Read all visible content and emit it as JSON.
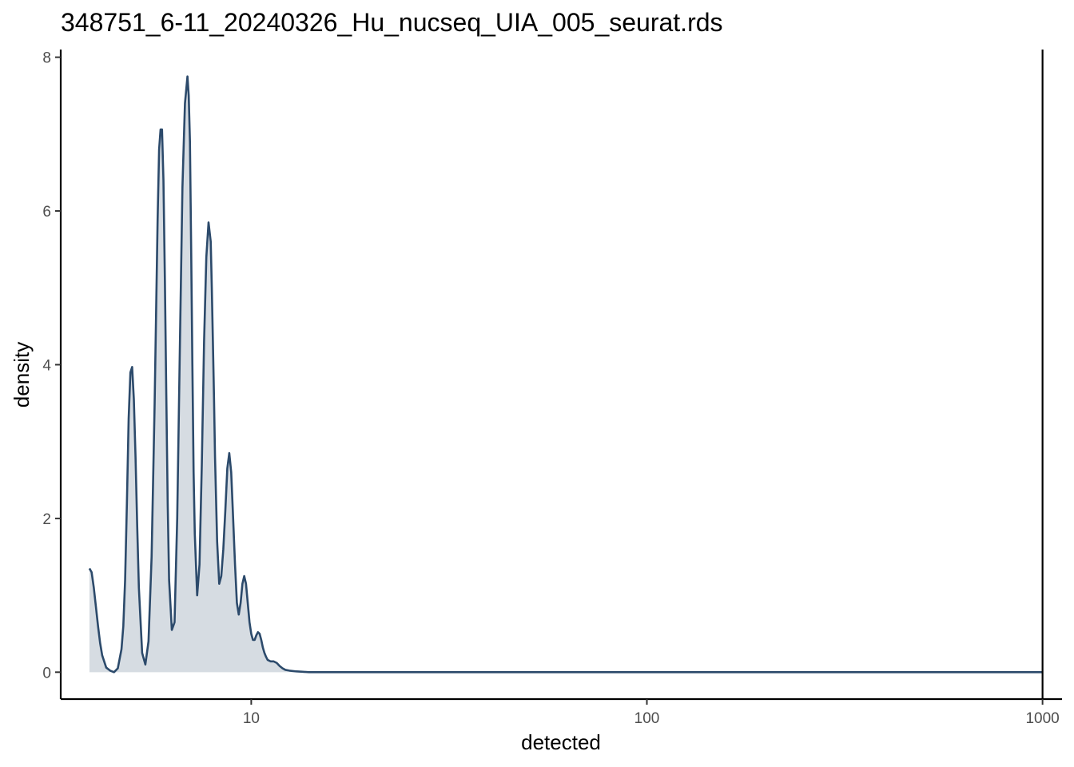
{
  "chart_data": {
    "type": "area",
    "title": "348751_6-11_20240326_Hu_nucseq_UIA_005_seurat.rds",
    "xlabel": "detected",
    "ylabel": "density",
    "x_scale": "log10",
    "xlim": [
      3.3,
      1120
    ],
    "ylim": [
      -0.35,
      8.1
    ],
    "x_ticks": [
      10,
      100,
      1000
    ],
    "x_tick_labels": [
      "10",
      "100",
      "1000"
    ],
    "y_ticks": [
      0,
      2,
      4,
      6,
      8
    ],
    "y_tick_labels": [
      "0",
      "2",
      "4",
      "6",
      "8"
    ],
    "grid": false,
    "legend": "none",
    "vline": {
      "x": 1000
    },
    "colors": {
      "line": "#2c4a6b",
      "fill": "#d6dce2",
      "axis": "#000000"
    },
    "series": [
      {
        "x": [
          3.9,
          3.95,
          4.0,
          4.05,
          4.1,
          4.15,
          4.2,
          4.3,
          4.4,
          4.5,
          4.6,
          4.7,
          4.75,
          4.8,
          4.85,
          4.9,
          4.95,
          5.0,
          5.05,
          5.1,
          5.15,
          5.2,
          5.3,
          5.4,
          5.5,
          5.6,
          5.7,
          5.8,
          5.85,
          5.9,
          5.95,
          6.0,
          6.05,
          6.1,
          6.15,
          6.2,
          6.3,
          6.4,
          6.5,
          6.6,
          6.7,
          6.8,
          6.9,
          6.95,
          7.0,
          7.05,
          7.1,
          7.15,
          7.2,
          7.3,
          7.4,
          7.5,
          7.6,
          7.7,
          7.8,
          7.9,
          7.95,
          8.0,
          8.05,
          8.1,
          8.2,
          8.3,
          8.4,
          8.5,
          8.6,
          8.7,
          8.8,
          8.9,
          8.95,
          9.0,
          9.1,
          9.2,
          9.3,
          9.4,
          9.5,
          9.6,
          9.7,
          9.8,
          9.9,
          10.0,
          10.1,
          10.2,
          10.3,
          10.4,
          10.5,
          10.6,
          10.7,
          10.8,
          10.9,
          11.0,
          11.2,
          11.4,
          11.6,
          11.8,
          12.0,
          12.2,
          12.5,
          13.0,
          13.5,
          14.0,
          15.0,
          16.0,
          20.0,
          50.0,
          100.0,
          300.0,
          1000.0
        ],
        "y": [
          1.35,
          1.3,
          1.1,
          0.85,
          0.6,
          0.38,
          0.22,
          0.06,
          0.02,
          0.0,
          0.05,
          0.3,
          0.6,
          1.2,
          2.2,
          3.3,
          3.9,
          3.97,
          3.55,
          2.8,
          1.9,
          1.1,
          0.25,
          0.1,
          0.4,
          1.5,
          3.5,
          5.9,
          6.8,
          7.06,
          7.06,
          6.4,
          5.1,
          3.6,
          2.2,
          1.2,
          0.55,
          0.65,
          2.0,
          4.2,
          6.3,
          7.4,
          7.75,
          7.5,
          6.9,
          5.5,
          4.0,
          2.6,
          1.8,
          1.0,
          1.4,
          2.7,
          4.3,
          5.4,
          5.85,
          5.6,
          5.0,
          4.3,
          3.6,
          2.8,
          1.7,
          1.15,
          1.25,
          1.6,
          2.1,
          2.65,
          2.85,
          2.6,
          2.3,
          2.0,
          1.4,
          0.9,
          0.75,
          0.9,
          1.15,
          1.25,
          1.15,
          0.9,
          0.65,
          0.5,
          0.42,
          0.42,
          0.48,
          0.52,
          0.5,
          0.42,
          0.32,
          0.25,
          0.2,
          0.16,
          0.14,
          0.14,
          0.12,
          0.08,
          0.05,
          0.03,
          0.02,
          0.01,
          0.005,
          0.0,
          0.0,
          0.0,
          0.0,
          0.0,
          0.0,
          0.0,
          0.0
        ]
      }
    ]
  }
}
